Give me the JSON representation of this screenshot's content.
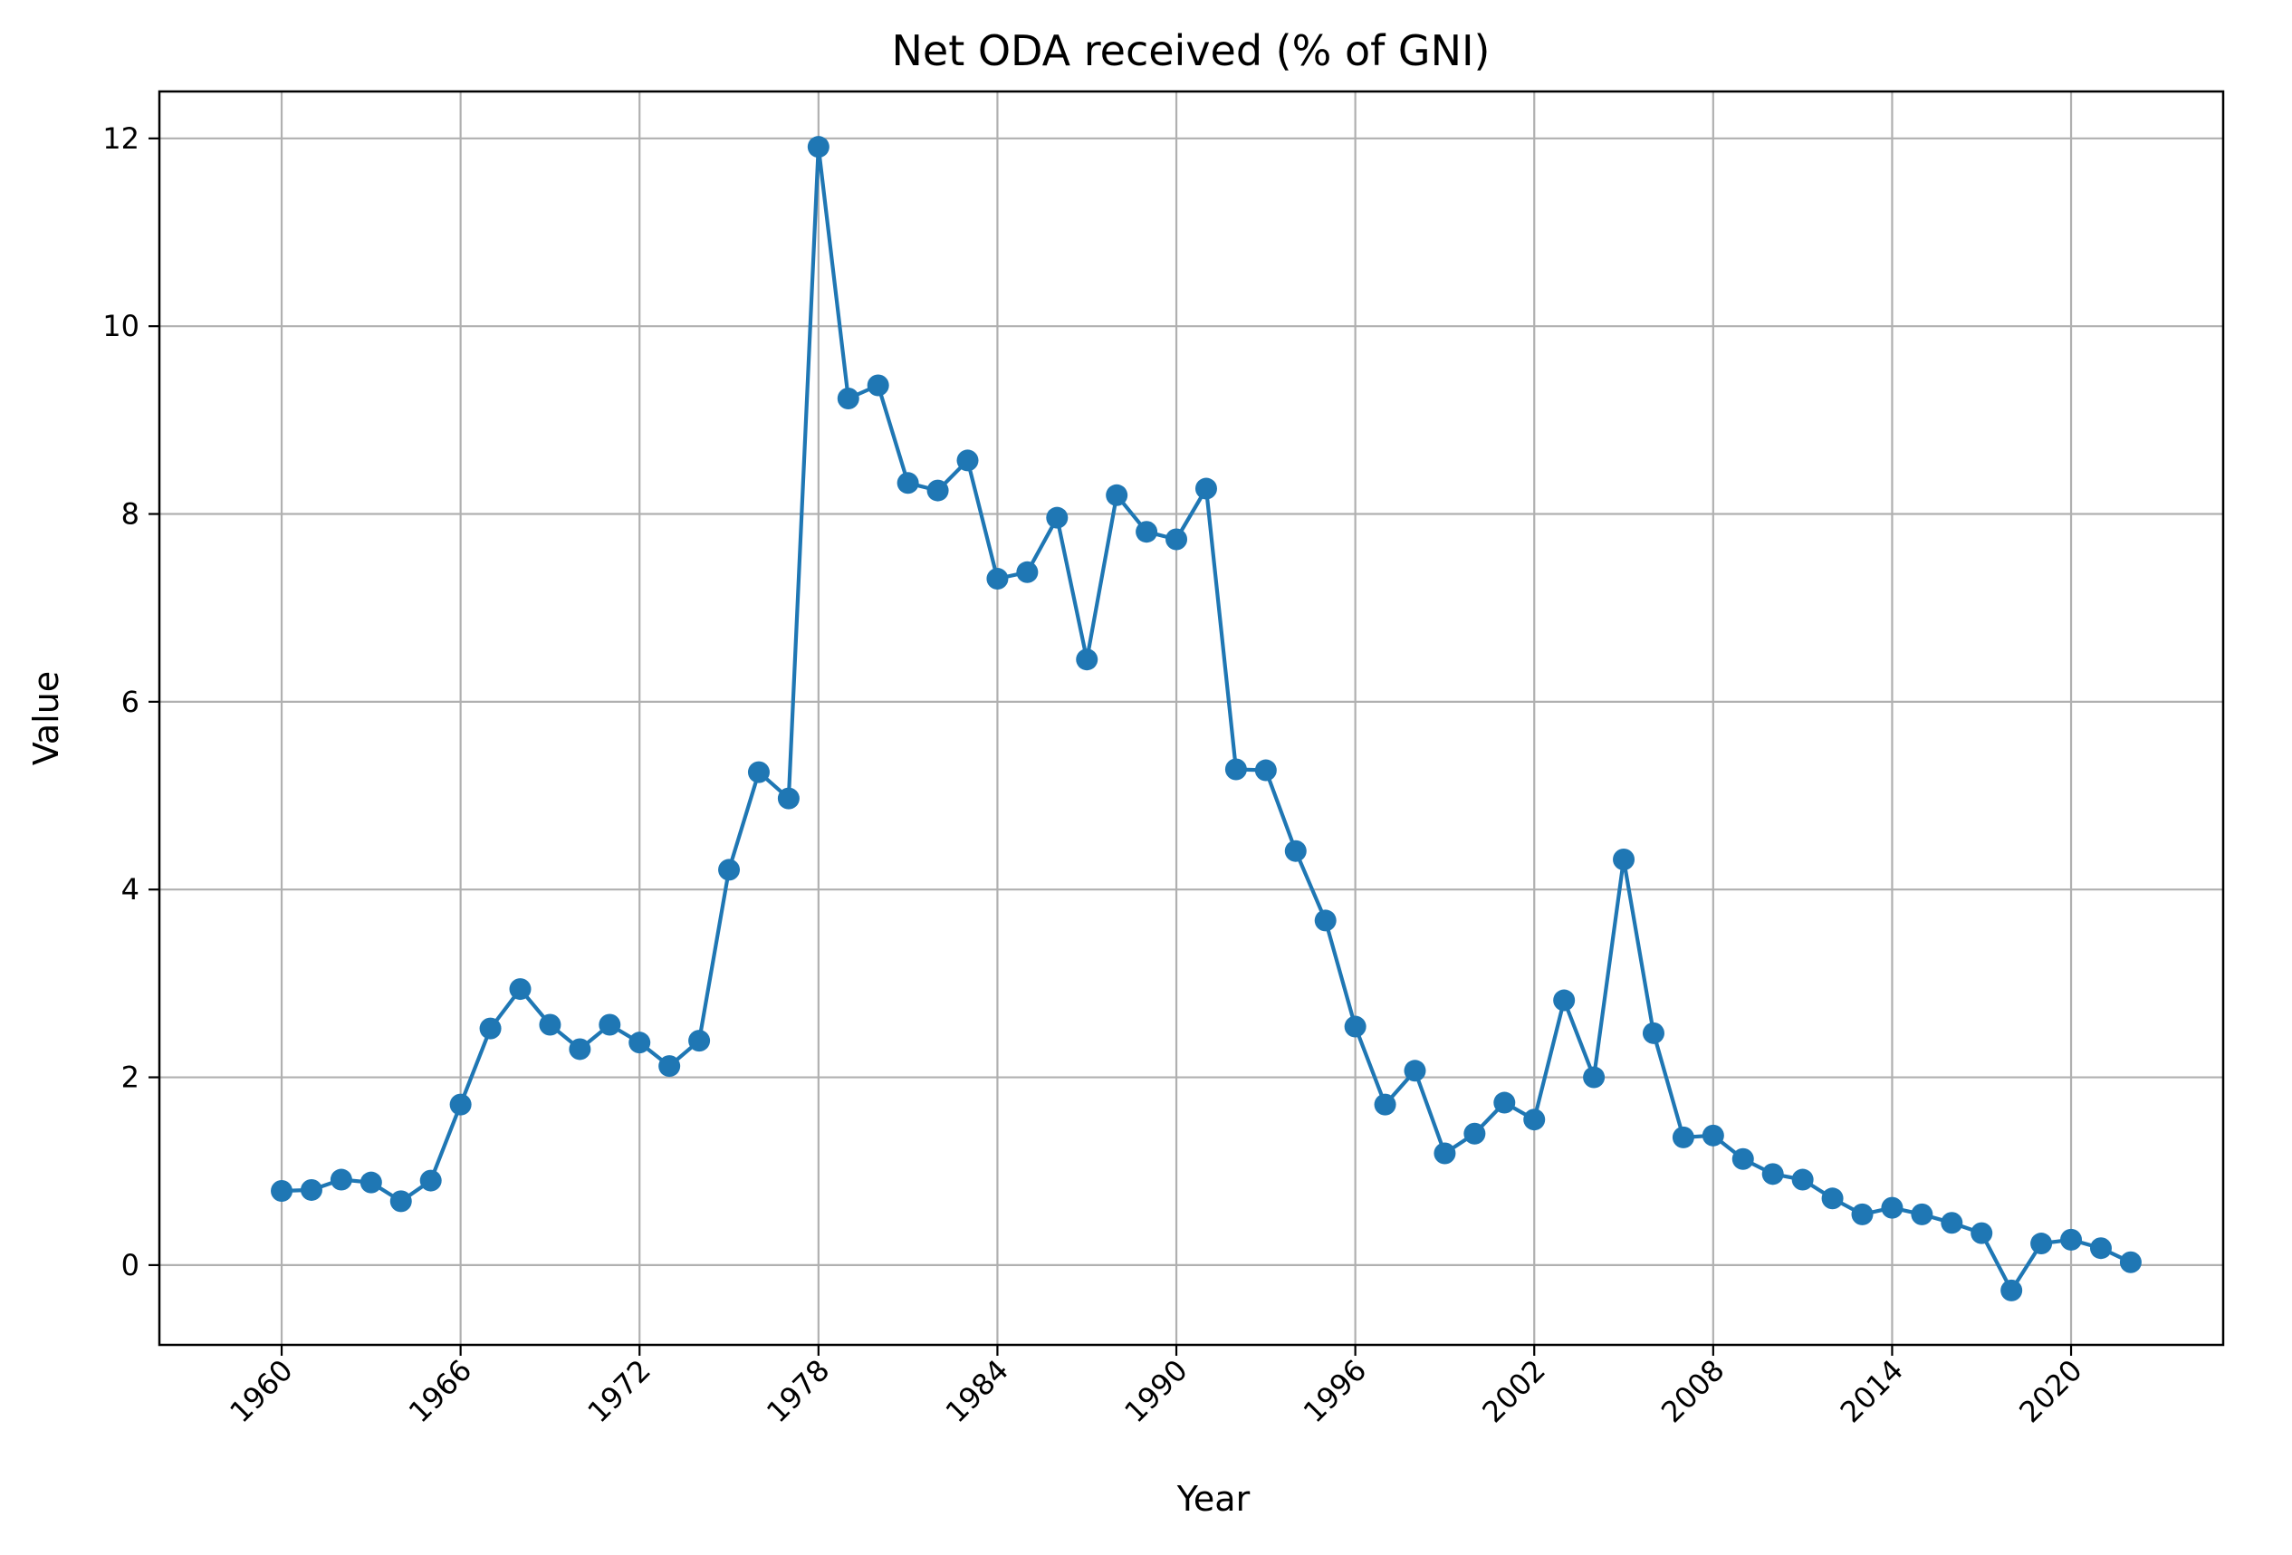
{
  "chart_data": {
    "type": "line",
    "title": "Net ODA received (% of GNI)",
    "xlabel": "Year",
    "ylabel": "Value",
    "xlim": [
      1955.9,
      2025.1
    ],
    "ylim": [
      -0.85,
      12.5
    ],
    "grid": true,
    "x_ticks": [
      "1960",
      "1966",
      "1972",
      "1978",
      "1984",
      "1990",
      "1996",
      "2002",
      "2008",
      "2014",
      "2020"
    ],
    "y_ticks": [
      "0",
      "2",
      "4",
      "6",
      "8",
      "10",
      "12"
    ],
    "series": [
      {
        "color": "#1f77b4",
        "marker": "circle",
        "x": [
          1960,
          1961,
          1962,
          1963,
          1964,
          1965,
          1966,
          1967,
          1968,
          1969,
          1970,
          1971,
          1972,
          1973,
          1974,
          1975,
          1976,
          1977,
          1978,
          1979,
          1980,
          1981,
          1982,
          1983,
          1984,
          1985,
          1986,
          1987,
          1988,
          1989,
          1990,
          1991,
          1992,
          1993,
          1994,
          1995,
          1996,
          1997,
          1998,
          1999,
          2000,
          2001,
          2002,
          2003,
          2004,
          2005,
          2006,
          2007,
          2008,
          2009,
          2010,
          2011,
          2012,
          2013,
          2014,
          2015,
          2016,
          2017,
          2018,
          2019,
          2020,
          2021,
          2022
        ],
        "values": [
          0.79,
          0.8,
          0.91,
          0.88,
          0.68,
          0.9,
          1.71,
          2.52,
          2.94,
          2.56,
          2.3,
          2.56,
          2.37,
          2.12,
          2.39,
          4.21,
          5.25,
          4.97,
          11.91,
          9.23,
          9.37,
          8.33,
          8.25,
          8.57,
          7.31,
          7.38,
          7.96,
          6.45,
          8.2,
          7.81,
          7.73,
          8.27,
          5.28,
          5.27,
          4.41,
          3.67,
          2.54,
          1.71,
          2.07,
          1.19,
          1.4,
          1.73,
          1.55,
          2.82,
          2.0,
          4.32,
          2.47,
          1.36,
          1.38,
          1.13,
          0.97,
          0.91,
          0.71,
          0.54,
          0.61,
          0.54,
          0.45,
          0.34,
          -0.27,
          0.23,
          0.27,
          0.18,
          0.03
        ]
      }
    ]
  }
}
